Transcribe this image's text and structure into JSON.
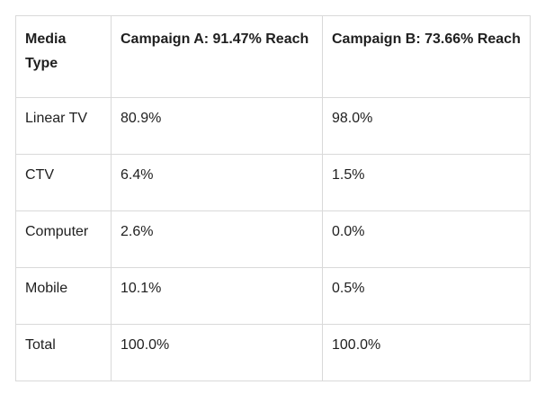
{
  "table": {
    "headers": [
      "Media Type",
      "Campaign A: 91.47% Reach",
      "Campaign B: 73.66% Reach"
    ],
    "rows": [
      [
        "Linear TV",
        "80.9%",
        "98.0%"
      ],
      [
        "CTV",
        "6.4%",
        "1.5%"
      ],
      [
        "Computer",
        "2.6%",
        "0.0%"
      ],
      [
        "Mobile",
        "10.1%",
        "0.5%"
      ],
      [
        "Total",
        "100.0%",
        "100.0%"
      ]
    ]
  }
}
